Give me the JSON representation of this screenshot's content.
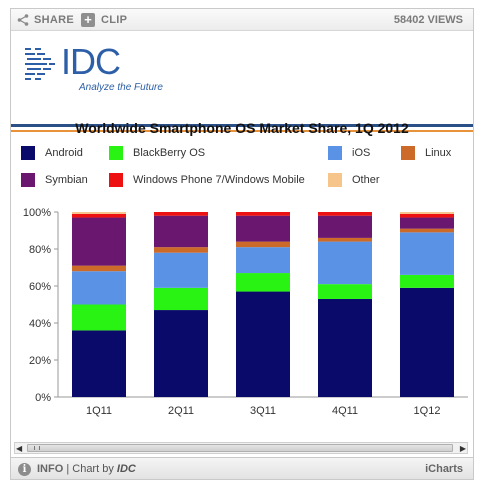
{
  "toolbar": {
    "share_label": "SHARE",
    "clip_label": "CLIP",
    "views_text": "58402 VIEWS"
  },
  "logo": {
    "name": "IDC",
    "tagline": "Analyze the Future"
  },
  "footer": {
    "info_label": "INFO",
    "chart_by_text": "| Chart by",
    "chart_by_brand": "IDC",
    "brand": "iCharts"
  },
  "colors": {
    "Android": "#0a0a6b",
    "BlackBerry OS": "#29f312",
    "iOS": "#5a93e6",
    "Linux": "#cc6a2a",
    "Symbian": "#6a176f",
    "Windows Phone 7/Windows Mobile": "#ee1111",
    "Other": "#f6c58b"
  },
  "chart_data": {
    "type": "bar",
    "stacked": true,
    "title": "Worldwide Smartphone OS Market Share, 1Q 2012",
    "categories": [
      "1Q11",
      "2Q11",
      "3Q11",
      "4Q11",
      "1Q12"
    ],
    "y_ticks": [
      "0%",
      "20%",
      "40%",
      "60%",
      "80%",
      "100%"
    ],
    "ylim": [
      0,
      100
    ],
    "grid": false,
    "legend_placement": "top",
    "series": [
      {
        "name": "Android",
        "values": [
          36,
          47,
          57,
          53,
          59
        ]
      },
      {
        "name": "BlackBerry OS",
        "values": [
          14,
          12,
          10,
          8,
          7
        ]
      },
      {
        "name": "iOS",
        "values": [
          18,
          19,
          14,
          23,
          23
        ]
      },
      {
        "name": "Linux",
        "values": [
          3,
          3,
          3,
          2,
          2
        ]
      },
      {
        "name": "Symbian",
        "values": [
          26,
          17,
          14,
          12,
          6
        ]
      },
      {
        "name": "Windows Phone 7/Windows Mobile",
        "values": [
          2,
          2,
          2,
          2,
          2
        ]
      },
      {
        "name": "Other",
        "values": [
          1,
          0,
          0,
          0,
          1
        ]
      }
    ]
  }
}
